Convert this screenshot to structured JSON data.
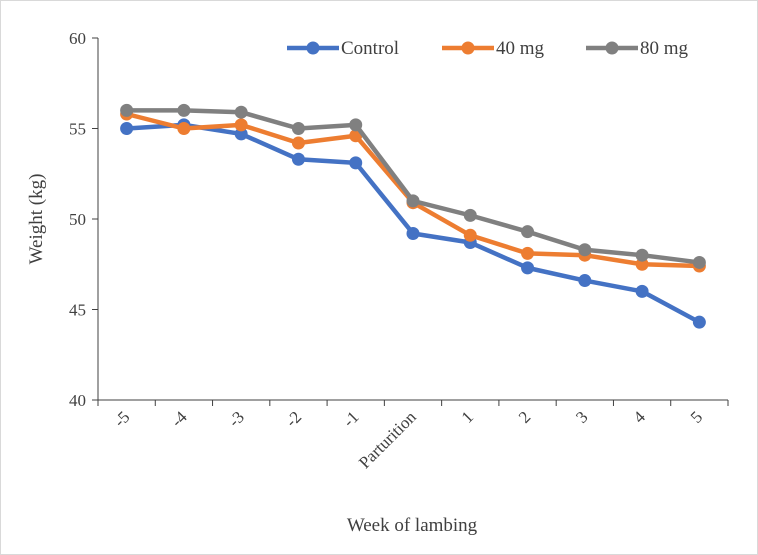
{
  "chart_data": {
    "type": "line",
    "xlabel": "Week of lambing",
    "ylabel": "Weight (kg)",
    "categories": [
      "-5",
      "-4",
      "-3",
      "-2",
      "-1",
      "Parturition",
      "1",
      "2",
      "3",
      "4",
      "5"
    ],
    "ylim": [
      40,
      60
    ],
    "yticks": [
      40,
      45,
      50,
      55,
      60
    ],
    "grid": false,
    "legend_position": "top-right",
    "series": [
      {
        "name": "Control",
        "color": "#4472C4",
        "values": [
          55.0,
          55.2,
          54.7,
          53.3,
          53.1,
          49.2,
          48.7,
          47.3,
          46.6,
          46.0,
          44.3
        ]
      },
      {
        "name": "40 mg",
        "color": "#ED7D31",
        "values": [
          55.8,
          55.0,
          55.2,
          54.2,
          54.6,
          50.9,
          49.1,
          48.1,
          48.0,
          47.5,
          47.4
        ]
      },
      {
        "name": "80 mg",
        "color": "#808080",
        "values": [
          56.0,
          56.0,
          55.9,
          55.0,
          55.2,
          51.0,
          50.2,
          49.3,
          48.3,
          48.0,
          47.6
        ]
      }
    ]
  }
}
